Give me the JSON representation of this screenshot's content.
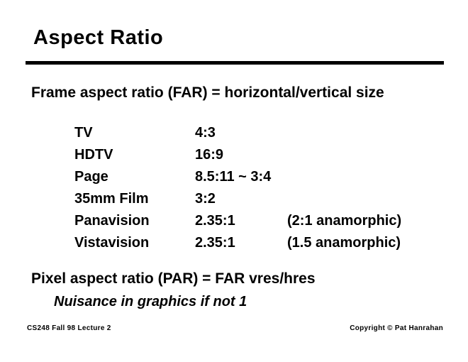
{
  "slide": {
    "title": "Aspect Ratio",
    "far_heading": "Frame aspect ratio (FAR) = horizontal/vertical size",
    "table": {
      "rows": [
        {
          "label": "TV",
          "ratio": "4:3",
          "note": ""
        },
        {
          "label": "HDTV",
          "ratio": "16:9",
          "note": ""
        },
        {
          "label": "Page",
          "ratio": "8.5:11 ~ 3:4",
          "note": ""
        },
        {
          "label": "35mm Film",
          "ratio": "3:2",
          "note": ""
        },
        {
          "label": "Panavision",
          "ratio": "2.35:1",
          "note": "(2:1 anamorphic)"
        },
        {
          "label": "Vistavision",
          "ratio": "2.35:1",
          "note": "(1.5 anamorphic)"
        }
      ]
    },
    "par_heading": "Pixel aspect ratio (PAR) = FAR vres/hres",
    "par_note": "Nuisance in graphics if not 1",
    "footer_left": "CS248 Fall 98 Lecture 2",
    "footer_right": "Copyright © Pat Hanrahan",
    "colors": {
      "text": "#000000",
      "background": "#ffffff"
    }
  }
}
